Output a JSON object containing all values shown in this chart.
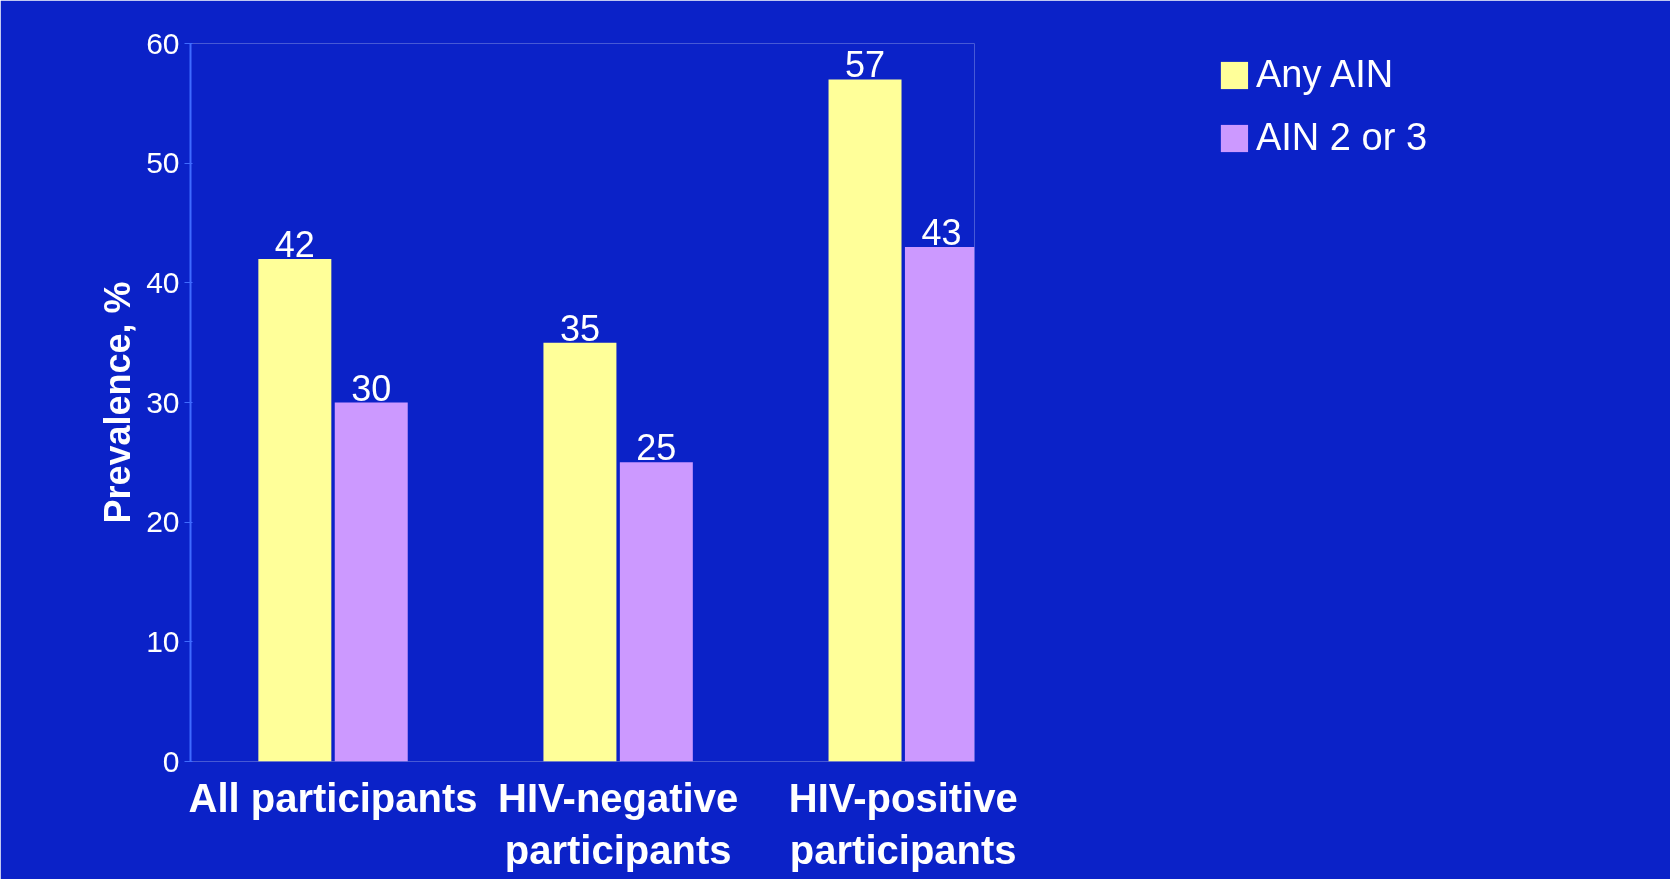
{
  "chart_data": {
    "type": "bar",
    "ylabel": "Prevalence, %",
    "categories": [
      "All participants",
      "HIV-negative participants",
      "HIV-positive participants"
    ],
    "series": [
      {
        "name": "Any AIN",
        "color": "#ffff99",
        "values": [
          42,
          35,
          57
        ]
      },
      {
        "name": "AIN 2 or 3",
        "color": "#cc99ff",
        "values": [
          30,
          25,
          43
        ]
      }
    ],
    "ylim": [
      0,
      60
    ],
    "yticks": [
      0,
      10,
      20,
      30,
      40,
      50,
      60
    ],
    "grid": false,
    "legend": "top right",
    "data_labels": true
  }
}
